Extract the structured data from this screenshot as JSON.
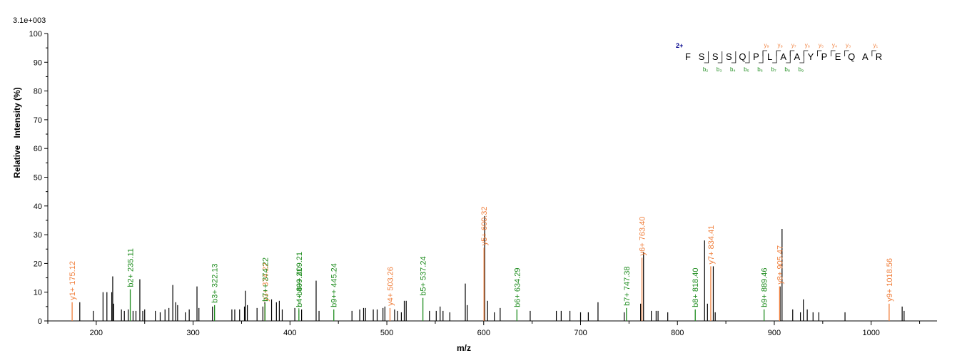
{
  "chart_data": {
    "type": "bar",
    "scale_label": "3.1e+003",
    "xlabel": "m/z",
    "ylabel": "Relative   Intensity (%)",
    "xlim": [
      150,
      1068
    ],
    "ylim": [
      0,
      100
    ],
    "x_ticks": [
      200,
      300,
      400,
      500,
      600,
      700,
      800,
      900,
      1000
    ],
    "y_ticks": [
      0,
      10,
      20,
      30,
      40,
      50,
      60,
      70,
      80,
      90,
      100
    ],
    "colors": {
      "y_ion": "#F07F3C",
      "b_ion": "#1E8C1E",
      "unassigned": "#000000",
      "charge": "#00008B"
    },
    "unassigned_peaks": [
      [
        183,
        6.5
      ],
      [
        197,
        3.5
      ],
      [
        207,
        10
      ],
      [
        211,
        10
      ],
      [
        216,
        10
      ],
      [
        217,
        15.5
      ],
      [
        218,
        6
      ],
      [
        226,
        4
      ],
      [
        229,
        3.5
      ],
      [
        233,
        4
      ],
      [
        238,
        3.5
      ],
      [
        241,
        3.5
      ],
      [
        245,
        14.5
      ],
      [
        248,
        3.5
      ],
      [
        250,
        4
      ],
      [
        261,
        3.5
      ],
      [
        266,
        3
      ],
      [
        271,
        4
      ],
      [
        275,
        4.5
      ],
      [
        279,
        12.5
      ],
      [
        282,
        6.5
      ],
      [
        284,
        5.5
      ],
      [
        292,
        3
      ],
      [
        296,
        4
      ],
      [
        304,
        12
      ],
      [
        306,
        4.5
      ],
      [
        320,
        5
      ],
      [
        340,
        4
      ],
      [
        343,
        4
      ],
      [
        348,
        4
      ],
      [
        353,
        5
      ],
      [
        354,
        10.5
      ],
      [
        356,
        5.5
      ],
      [
        366,
        4.5
      ],
      [
        372,
        5
      ],
      [
        374,
        6.5
      ],
      [
        381,
        7.5
      ],
      [
        386,
        6.5
      ],
      [
        389,
        7
      ],
      [
        392,
        4
      ],
      [
        405,
        4.5
      ],
      [
        412,
        4
      ],
      [
        427,
        14
      ],
      [
        430,
        3.5
      ],
      [
        464,
        3.5
      ],
      [
        472,
        4
      ],
      [
        476,
        4.5
      ],
      [
        478,
        4.5
      ],
      [
        486,
        4
      ],
      [
        490,
        4
      ],
      [
        496,
        4.5
      ],
      [
        498,
        5
      ],
      [
        508,
        4
      ],
      [
        511,
        3.5
      ],
      [
        515,
        3
      ],
      [
        518,
        7
      ],
      [
        520,
        7
      ],
      [
        544,
        3.5
      ],
      [
        551,
        3.5
      ],
      [
        555,
        5
      ],
      [
        558,
        3.5
      ],
      [
        565,
        3
      ],
      [
        581,
        13
      ],
      [
        583,
        5.5
      ],
      [
        601,
        36.5
      ],
      [
        604,
        7
      ],
      [
        611,
        3
      ],
      [
        617,
        4.5
      ],
      [
        648,
        3.5
      ],
      [
        675,
        3.5
      ],
      [
        680,
        3.5
      ],
      [
        689,
        3.5
      ],
      [
        700,
        3
      ],
      [
        708,
        3
      ],
      [
        718,
        6.5
      ],
      [
        745,
        3
      ],
      [
        762,
        6
      ],
      [
        765,
        24
      ],
      [
        773,
        3.5
      ],
      [
        778,
        3.5
      ],
      [
        780,
        3.5
      ],
      [
        790,
        3
      ],
      [
        828,
        28
      ],
      [
        831,
        6
      ],
      [
        837,
        19
      ],
      [
        839,
        3
      ],
      [
        906,
        12
      ],
      [
        908,
        32
      ],
      [
        919,
        4
      ],
      [
        927,
        3
      ],
      [
        930,
        7.5
      ],
      [
        934,
        4
      ],
      [
        940,
        3
      ],
      [
        946,
        3
      ],
      [
        973,
        3
      ],
      [
        1032,
        5
      ],
      [
        1034,
        3.5
      ]
    ],
    "y_ions": [
      {
        "label": "y1+ 175.12",
        "mz": 175.12,
        "intensity": 6.5
      },
      {
        "label": "y3+ 374.22",
        "mz": 374.22,
        "intensity": 6
      },
      {
        "label": "y4+ 503.26",
        "mz": 503.26,
        "intensity": 4.5
      },
      {
        "label": "y5+ 600.32",
        "mz": 600.32,
        "intensity": 25.5
      },
      {
        "label": "y6+ 763.40",
        "mz": 763.4,
        "intensity": 22
      },
      {
        "label": "y7+ 834.41",
        "mz": 834.41,
        "intensity": 19
      },
      {
        "label": "y8+ 905.47",
        "mz": 905.47,
        "intensity": 12
      },
      {
        "label": "y9+ 1018.56",
        "mz": 1018.56,
        "intensity": 6
      }
    ],
    "b_ions": [
      {
        "label": "b2+ 235.11",
        "mz": 235.11,
        "intensity": 11
      },
      {
        "label": "b3+ 322.13",
        "mz": 322.13,
        "intensity": 5.5
      },
      {
        "label": "b7++ 374.22",
        "mz": 374.22,
        "intensity": 6
      },
      {
        "label": "b8++ 409.21",
        "mz": 409.21,
        "intensity": 8,
        "dashed": true
      },
      {
        "label": "b4+ 409.21",
        "mz": 409.21,
        "intensity": 4
      },
      {
        "label": "b9++ 445.24",
        "mz": 445.24,
        "intensity": 4
      },
      {
        "label": "b5+ 537.24",
        "mz": 537.24,
        "intensity": 8
      },
      {
        "label": "b6+ 634.29",
        "mz": 634.29,
        "intensity": 4
      },
      {
        "label": "b7+ 747.38",
        "mz": 747.38,
        "intensity": 4.5
      },
      {
        "label": "b8+ 818.40",
        "mz": 818.4,
        "intensity": 4
      },
      {
        "label": "b9+ 889.46",
        "mz": 889.46,
        "intensity": 4
      }
    ]
  },
  "sequence": {
    "charge": "2+",
    "residues": [
      "F",
      "S",
      "S",
      "S",
      "Q",
      "P",
      "L",
      "A",
      "A",
      "Y",
      "P",
      "E",
      "Q",
      "A",
      "R"
    ],
    "y_labels": [
      "y₉",
      "y₈",
      "y₇",
      "y₆",
      "y₅",
      "y₄",
      "y₃",
      "y₁"
    ],
    "b_labels": [
      "b₂",
      "b₃",
      "b₄",
      "b₅",
      "b₆",
      "b₇",
      "b₈",
      "b₉"
    ]
  }
}
